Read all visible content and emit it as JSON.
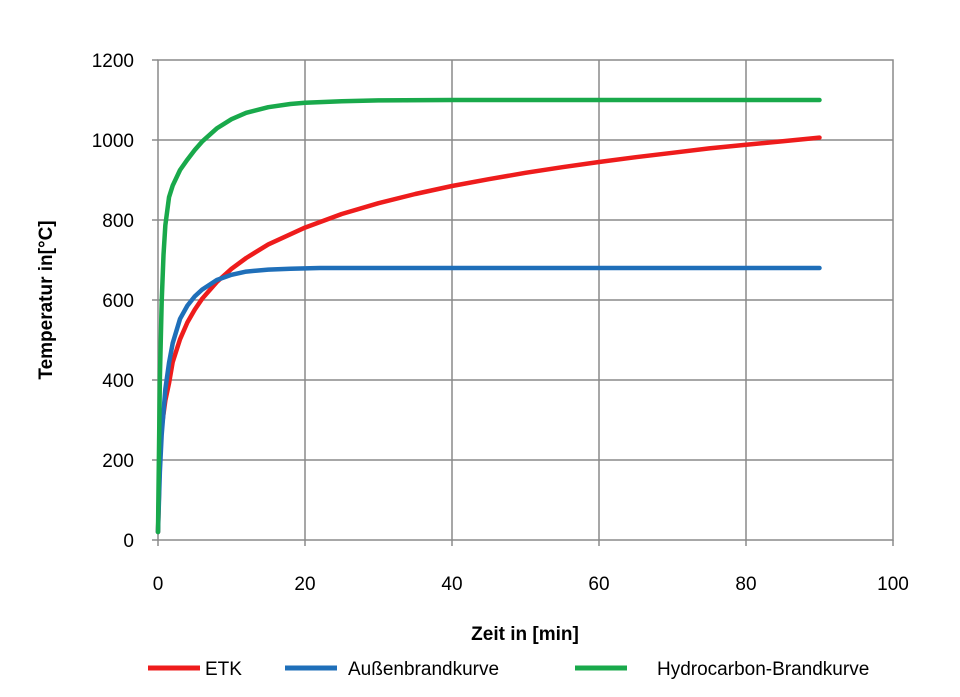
{
  "chart_data": {
    "type": "line",
    "title": "",
    "xlabel": "Zeit in [min]",
    "ylabel": "Temperatur in[°C]",
    "xlim": [
      0,
      100
    ],
    "ylim": [
      0,
      1200
    ],
    "x_ticks": [
      0,
      20,
      40,
      60,
      80,
      100
    ],
    "y_ticks": [
      0,
      200,
      400,
      600,
      800,
      1000,
      1200
    ],
    "grid": true,
    "legend_position": "bottom",
    "series": [
      {
        "name": "ETK",
        "color": "#ee1c1c",
        "x": [
          0,
          0.25,
          0.5,
          1,
          1.5,
          2,
          3,
          4,
          5,
          6,
          8,
          10,
          12,
          15,
          20,
          25,
          30,
          35,
          40,
          45,
          50,
          55,
          60,
          65,
          70,
          75,
          80,
          85,
          90
        ],
        "y": [
          20,
          205,
          282,
          349,
          392,
          445,
          502,
          544,
          576,
          603,
          645,
          678,
          705,
          739,
          781,
          815,
          842,
          865,
          885,
          902,
          918,
          932,
          945,
          957,
          968,
          979,
          988,
          997,
          1006
        ]
      },
      {
        "name": "Außenbrandkurve",
        "color": "#1f6fb9",
        "x": [
          0,
          0.25,
          0.5,
          1,
          1.5,
          2,
          3,
          4,
          5,
          6,
          8,
          10,
          12,
          15,
          18,
          20,
          22,
          30,
          40,
          50,
          60,
          70,
          80,
          90
        ],
        "y": [
          20,
          169,
          263,
          377,
          443,
          492,
          553,
          586,
          609,
          626,
          650,
          663,
          671,
          676,
          678,
          679,
          680,
          680,
          680,
          680,
          680,
          680,
          680,
          680
        ]
      },
      {
        "name": "Hydrocarbon-Brandkurve",
        "color": "#19a94b",
        "x": [
          0,
          0.25,
          0.5,
          0.75,
          1,
          1.5,
          2,
          3,
          4,
          5,
          6,
          8,
          10,
          12,
          15,
          18,
          20,
          25,
          30,
          40,
          50,
          60,
          70,
          80,
          90
        ],
        "y": [
          20,
          400,
          595,
          713,
          787,
          857,
          886,
          925,
          951,
          975,
          996,
          1029,
          1052,
          1068,
          1082,
          1090,
          1093,
          1097,
          1099,
          1100,
          1100,
          1100,
          1100,
          1100,
          1100
        ]
      }
    ]
  }
}
